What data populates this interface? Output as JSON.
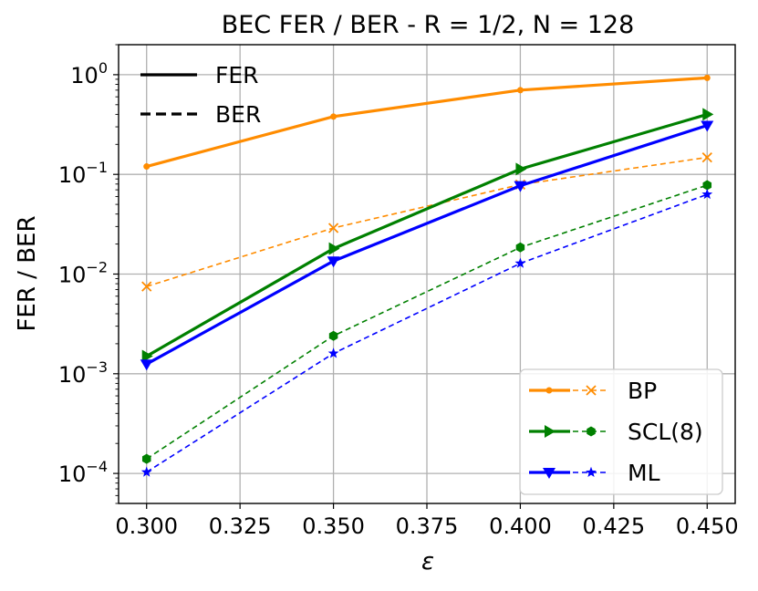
{
  "chart_data": {
    "type": "line",
    "title": "BEC FER / BER - R = 1/2, N = 128",
    "xlabel": "ε",
    "ylabel": "FER / BER",
    "xlim": [
      0.2925,
      0.4575
    ],
    "ylim": [
      5e-05,
      2
    ],
    "yscale": "log",
    "grid": true,
    "x": [
      0.3,
      0.35,
      0.4,
      0.45
    ],
    "xticks": [
      0.3,
      0.325,
      0.35,
      0.375,
      0.4,
      0.425,
      0.45
    ],
    "xtick_labels": [
      "0.300",
      "0.325",
      "0.350",
      "0.375",
      "0.400",
      "0.425",
      "0.450"
    ],
    "yticks": [
      {
        "value": 1,
        "base": "10",
        "exp": "0"
      },
      {
        "value": 0.1,
        "base": "10",
        "exp": "−1"
      },
      {
        "value": 0.01,
        "base": "10",
        "exp": "−2"
      },
      {
        "value": 0.001,
        "base": "10",
        "exp": "−3"
      },
      {
        "value": 0.0001,
        "base": "10",
        "exp": "−4"
      }
    ],
    "style_legend": {
      "placement": "top-left",
      "entries": [
        {
          "label": "FER",
          "dash": "solid"
        },
        {
          "label": "BER",
          "dash": "dashed"
        }
      ]
    },
    "decoder_legend": {
      "placement": "bottom-right",
      "entries": [
        {
          "label": "BP",
          "color": "#ff8c00",
          "fer_marker": "point",
          "ber_marker": "x"
        },
        {
          "label": "SCL(8)",
          "color": "#008000",
          "fer_marker": "triangle-right",
          "ber_marker": "hexagon"
        },
        {
          "label": "ML",
          "color": "#0000ff",
          "fer_marker": "triangle-down",
          "ber_marker": "star"
        }
      ]
    },
    "series": [
      {
        "decoder": "BP",
        "metric": "FER",
        "color": "#ff8c00",
        "dash": "solid",
        "marker": "point",
        "values": [
          0.12,
          0.38,
          0.7,
          0.93
        ]
      },
      {
        "decoder": "BP",
        "metric": "BER",
        "color": "#ff8c00",
        "dash": "dashed",
        "marker": "x",
        "values": [
          0.0075,
          0.029,
          0.079,
          0.148
        ]
      },
      {
        "decoder": "SCL(8)",
        "metric": "FER",
        "color": "#008000",
        "dash": "solid",
        "marker": "triangle-right",
        "values": [
          0.0015,
          0.018,
          0.113,
          0.4
        ]
      },
      {
        "decoder": "SCL(8)",
        "metric": "BER",
        "color": "#008000",
        "dash": "dashed",
        "marker": "hexagon",
        "values": [
          0.00014,
          0.0024,
          0.0185,
          0.078
        ]
      },
      {
        "decoder": "ML",
        "metric": "FER",
        "color": "#0000ff",
        "dash": "solid",
        "marker": "triangle-down",
        "values": [
          0.00125,
          0.0135,
          0.077,
          0.31
        ]
      },
      {
        "decoder": "ML",
        "metric": "BER",
        "color": "#0000ff",
        "dash": "dashed",
        "marker": "star",
        "values": [
          0.000103,
          0.0016,
          0.0128,
          0.063
        ]
      }
    ]
  }
}
